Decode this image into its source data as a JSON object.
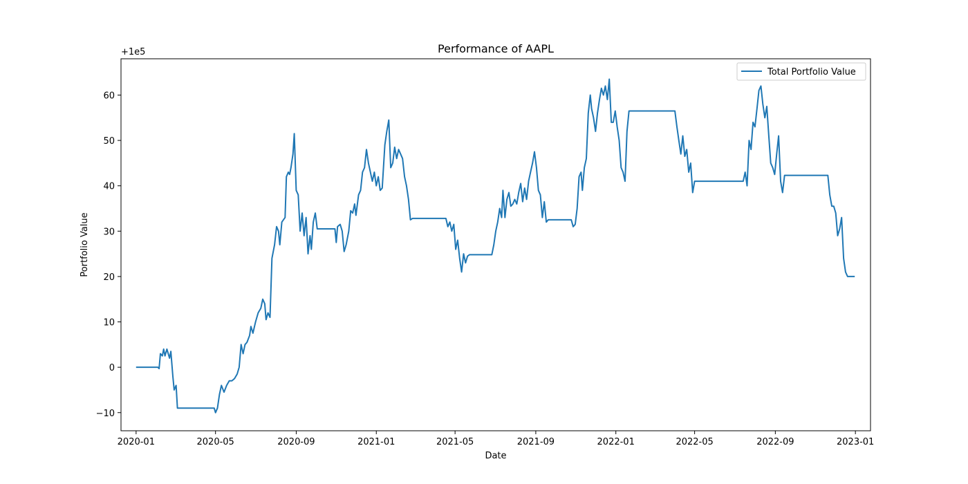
{
  "chart_data": {
    "type": "line",
    "title": "Performance of AAPL",
    "xlabel": "Date",
    "ylabel": "Portfolio Value",
    "offset_text": "+1e5",
    "xlim": [
      "2019-12-09",
      "2023-01-24"
    ],
    "ylim": [
      -14,
      68
    ],
    "x_ticks": [
      "2020-01",
      "2020-05",
      "2020-09",
      "2021-01",
      "2021-05",
      "2021-09",
      "2022-01",
      "2022-05",
      "2022-09",
      "2023-01"
    ],
    "y_ticks": [
      -10,
      0,
      10,
      20,
      30,
      40,
      50,
      60
    ],
    "legend": {
      "position": "top-right",
      "entries": [
        "Total Portfolio Value"
      ]
    },
    "grid": false,
    "series": [
      {
        "name": "Total Portfolio Value",
        "color": "#1f77b4",
        "points": [
          [
            "2020-01-01",
            0
          ],
          [
            "2020-02-03",
            0
          ],
          [
            "2020-02-05",
            -0.3
          ],
          [
            "2020-02-07",
            3
          ],
          [
            "2020-02-10",
            2.5
          ],
          [
            "2020-02-12",
            4
          ],
          [
            "2020-02-14",
            2.5
          ],
          [
            "2020-02-17",
            4
          ],
          [
            "2020-02-19",
            3
          ],
          [
            "2020-02-21",
            2
          ],
          [
            "2020-02-23",
            3.5
          ],
          [
            "2020-02-26",
            -2
          ],
          [
            "2020-02-28",
            -5
          ],
          [
            "2020-03-02",
            -4
          ],
          [
            "2020-03-04",
            -9
          ],
          [
            "2020-04-29",
            -9
          ],
          [
            "2020-05-01",
            -10
          ],
          [
            "2020-05-04",
            -9
          ],
          [
            "2020-05-07",
            -6
          ],
          [
            "2020-05-10",
            -4
          ],
          [
            "2020-05-14",
            -5.5
          ],
          [
            "2020-05-18",
            -4
          ],
          [
            "2020-05-22",
            -3
          ],
          [
            "2020-05-26",
            -3
          ],
          [
            "2020-05-30",
            -2.5
          ],
          [
            "2020-06-03",
            -1.5
          ],
          [
            "2020-06-06",
            0
          ],
          [
            "2020-06-09",
            5
          ],
          [
            "2020-06-12",
            3
          ],
          [
            "2020-06-15",
            5
          ],
          [
            "2020-06-18",
            5.5
          ],
          [
            "2020-06-22",
            7
          ],
          [
            "2020-06-24",
            9
          ],
          [
            "2020-06-27",
            7.5
          ],
          [
            "2020-07-01",
            10
          ],
          [
            "2020-07-05",
            12
          ],
          [
            "2020-07-09",
            13
          ],
          [
            "2020-07-12",
            15
          ],
          [
            "2020-07-15",
            14
          ],
          [
            "2020-07-17",
            10.5
          ],
          [
            "2020-07-20",
            12
          ],
          [
            "2020-07-23",
            11
          ],
          [
            "2020-07-26",
            24
          ],
          [
            "2020-07-30",
            27
          ],
          [
            "2020-08-02",
            31
          ],
          [
            "2020-08-05",
            30
          ],
          [
            "2020-08-07",
            27
          ],
          [
            "2020-08-10",
            32
          ],
          [
            "2020-08-15",
            33
          ],
          [
            "2020-08-17",
            42
          ],
          [
            "2020-08-20",
            43
          ],
          [
            "2020-08-22",
            42.5
          ],
          [
            "2020-08-24",
            44
          ],
          [
            "2020-08-27",
            47
          ],
          [
            "2020-08-29",
            51.5
          ],
          [
            "2020-09-01",
            39
          ],
          [
            "2020-09-04",
            38
          ],
          [
            "2020-09-07",
            30
          ],
          [
            "2020-09-10",
            34
          ],
          [
            "2020-09-13",
            29
          ],
          [
            "2020-09-16",
            33
          ],
          [
            "2020-09-19",
            25
          ],
          [
            "2020-09-22",
            29
          ],
          [
            "2020-09-24",
            26
          ],
          [
            "2020-09-27",
            32
          ],
          [
            "2020-09-30",
            34
          ],
          [
            "2020-10-03",
            30.5
          ],
          [
            "2020-10-30",
            30.5
          ],
          [
            "2020-11-01",
            27.5
          ],
          [
            "2020-11-03",
            31
          ],
          [
            "2020-11-07",
            31.5
          ],
          [
            "2020-11-10",
            30
          ],
          [
            "2020-11-13",
            25.5
          ],
          [
            "2020-11-16",
            27
          ],
          [
            "2020-11-20",
            30
          ],
          [
            "2020-11-23",
            34.5
          ],
          [
            "2020-11-26",
            34
          ],
          [
            "2020-11-29",
            36
          ],
          [
            "2020-12-01",
            33.5
          ],
          [
            "2020-12-05",
            38
          ],
          [
            "2020-12-08",
            39
          ],
          [
            "2020-12-11",
            43
          ],
          [
            "2020-12-14",
            44
          ],
          [
            "2020-12-17",
            48
          ],
          [
            "2020-12-20",
            45
          ],
          [
            "2020-12-23",
            43
          ],
          [
            "2020-12-26",
            41
          ],
          [
            "2020-12-29",
            43
          ],
          [
            "2021-01-01",
            40
          ],
          [
            "2021-01-04",
            42
          ],
          [
            "2021-01-07",
            39
          ],
          [
            "2021-01-10",
            39.5
          ],
          [
            "2021-01-14",
            49
          ],
          [
            "2021-01-17",
            52
          ],
          [
            "2021-01-20",
            54.5
          ],
          [
            "2021-01-23",
            44
          ],
          [
            "2021-01-26",
            45
          ],
          [
            "2021-01-29",
            48.5
          ],
          [
            "2021-02-01",
            46
          ],
          [
            "2021-02-04",
            48
          ],
          [
            "2021-02-07",
            47
          ],
          [
            "2021-02-10",
            46
          ],
          [
            "2021-02-13",
            42
          ],
          [
            "2021-02-16",
            40
          ],
          [
            "2021-02-19",
            37
          ],
          [
            "2021-02-22",
            32.5
          ],
          [
            "2021-02-25",
            32.8
          ],
          [
            "2021-04-17",
            32.8
          ],
          [
            "2021-04-20",
            31
          ],
          [
            "2021-04-23",
            32
          ],
          [
            "2021-04-26",
            30
          ],
          [
            "2021-04-29",
            31.5
          ],
          [
            "2021-05-02",
            26
          ],
          [
            "2021-05-05",
            28
          ],
          [
            "2021-05-08",
            24
          ],
          [
            "2021-05-11",
            21
          ],
          [
            "2021-05-14",
            25
          ],
          [
            "2021-05-17",
            23
          ],
          [
            "2021-05-20",
            24.5
          ],
          [
            "2021-05-23",
            24.8
          ],
          [
            "2021-06-26",
            24.8
          ],
          [
            "2021-06-29",
            27
          ],
          [
            "2021-07-02",
            30
          ],
          [
            "2021-07-05",
            32
          ],
          [
            "2021-07-08",
            35
          ],
          [
            "2021-07-11",
            33
          ],
          [
            "2021-07-13",
            39
          ],
          [
            "2021-07-16",
            33
          ],
          [
            "2021-07-19",
            37
          ],
          [
            "2021-07-22",
            38.5
          ],
          [
            "2021-07-25",
            35.5
          ],
          [
            "2021-07-28",
            36
          ],
          [
            "2021-07-31",
            37
          ],
          [
            "2021-08-03",
            36
          ],
          [
            "2021-08-06",
            38.5
          ],
          [
            "2021-08-09",
            40.5
          ],
          [
            "2021-08-12",
            36.5
          ],
          [
            "2021-08-15",
            39.5
          ],
          [
            "2021-08-18",
            37
          ],
          [
            "2021-08-21",
            41
          ],
          [
            "2021-08-24",
            43
          ],
          [
            "2021-08-27",
            45
          ],
          [
            "2021-08-30",
            47.5
          ],
          [
            "2021-09-02",
            44
          ],
          [
            "2021-09-05",
            39
          ],
          [
            "2021-09-08",
            38
          ],
          [
            "2021-09-11",
            33
          ],
          [
            "2021-09-14",
            36.5
          ],
          [
            "2021-09-17",
            32
          ],
          [
            "2021-09-20",
            32.5
          ],
          [
            "2021-10-25",
            32.5
          ],
          [
            "2021-10-28",
            31
          ],
          [
            "2021-10-31",
            31.5
          ],
          [
            "2021-11-03",
            35
          ],
          [
            "2021-11-06",
            42
          ],
          [
            "2021-11-09",
            43
          ],
          [
            "2021-11-11",
            39
          ],
          [
            "2021-11-14",
            44
          ],
          [
            "2021-11-17",
            46
          ],
          [
            "2021-11-20",
            56
          ],
          [
            "2021-11-23",
            60
          ],
          [
            "2021-11-25",
            57
          ],
          [
            "2021-11-28",
            55
          ],
          [
            "2021-12-01",
            52
          ],
          [
            "2021-12-04",
            56
          ],
          [
            "2021-12-07",
            59
          ],
          [
            "2021-12-10",
            61.5
          ],
          [
            "2021-12-13",
            60
          ],
          [
            "2021-12-16",
            62
          ],
          [
            "2021-12-19",
            59
          ],
          [
            "2021-12-22",
            63.5
          ],
          [
            "2021-12-25",
            54
          ],
          [
            "2021-12-28",
            54
          ],
          [
            "2021-12-31",
            56.5
          ],
          [
            "2022-01-03",
            53
          ],
          [
            "2022-01-06",
            50
          ],
          [
            "2022-01-09",
            44
          ],
          [
            "2022-01-12",
            43
          ],
          [
            "2022-01-15",
            41
          ],
          [
            "2022-01-18",
            52
          ],
          [
            "2022-01-21",
            56.5
          ],
          [
            "2022-04-01",
            56.5
          ],
          [
            "2022-04-04",
            53
          ],
          [
            "2022-04-07",
            50
          ],
          [
            "2022-04-10",
            47
          ],
          [
            "2022-04-13",
            51
          ],
          [
            "2022-04-16",
            46.5
          ],
          [
            "2022-04-19",
            48
          ],
          [
            "2022-04-22",
            43
          ],
          [
            "2022-04-25",
            45
          ],
          [
            "2022-04-28",
            38.5
          ],
          [
            "2022-05-01",
            41
          ],
          [
            "2022-05-04",
            41
          ],
          [
            "2022-07-14",
            41
          ],
          [
            "2022-07-17",
            43
          ],
          [
            "2022-07-20",
            40
          ],
          [
            "2022-07-23",
            50
          ],
          [
            "2022-07-26",
            48
          ],
          [
            "2022-07-29",
            54
          ],
          [
            "2022-08-01",
            53
          ],
          [
            "2022-08-04",
            57
          ],
          [
            "2022-08-07",
            61
          ],
          [
            "2022-08-10",
            62
          ],
          [
            "2022-08-13",
            58
          ],
          [
            "2022-08-16",
            55
          ],
          [
            "2022-08-19",
            57.5
          ],
          [
            "2022-08-22",
            51
          ],
          [
            "2022-08-25",
            45
          ],
          [
            "2022-08-28",
            44
          ],
          [
            "2022-08-31",
            42.5
          ],
          [
            "2022-09-03",
            47
          ],
          [
            "2022-09-06",
            51
          ],
          [
            "2022-09-09",
            41
          ],
          [
            "2022-09-12",
            38.5
          ],
          [
            "2022-09-15",
            42.3
          ],
          [
            "2022-11-20",
            42.3
          ],
          [
            "2022-11-23",
            38
          ],
          [
            "2022-11-26",
            35.5
          ],
          [
            "2022-11-29",
            35.5
          ],
          [
            "2022-12-02",
            34
          ],
          [
            "2022-12-05",
            29
          ],
          [
            "2022-12-08",
            30.5
          ],
          [
            "2022-12-11",
            33
          ],
          [
            "2022-12-14",
            24
          ],
          [
            "2022-12-17",
            21
          ],
          [
            "2022-12-20",
            20
          ],
          [
            "2022-12-31",
            20
          ]
        ]
      }
    ]
  }
}
